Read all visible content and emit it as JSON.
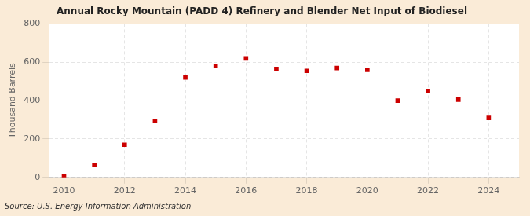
{
  "chart_data": {
    "type": "scatter",
    "title": "Annual Rocky Mountain (PADD 4) Refinery and Blender Net Input of Biodiesel",
    "ylabel": "Thousand Barrels",
    "annotation": "Source: U.S. Energy Information Administration",
    "x": [
      2010,
      2011,
      2012,
      2013,
      2014,
      2015,
      2016,
      2017,
      2018,
      2019,
      2020,
      2021,
      2022,
      2023,
      2024
    ],
    "values": [
      5,
      65,
      170,
      295,
      520,
      580,
      620,
      565,
      555,
      570,
      560,
      400,
      450,
      405,
      310
    ],
    "color": "#cc0000",
    "marker": "square",
    "xlim": [
      2009.5,
      2025.0
    ],
    "ylim": [
      0,
      800
    ],
    "xticks": [
      2010,
      2012,
      2014,
      2016,
      2018,
      2020,
      2022,
      2024
    ],
    "yticks": [
      0,
      200,
      400,
      600,
      800
    ],
    "grid": true
  }
}
